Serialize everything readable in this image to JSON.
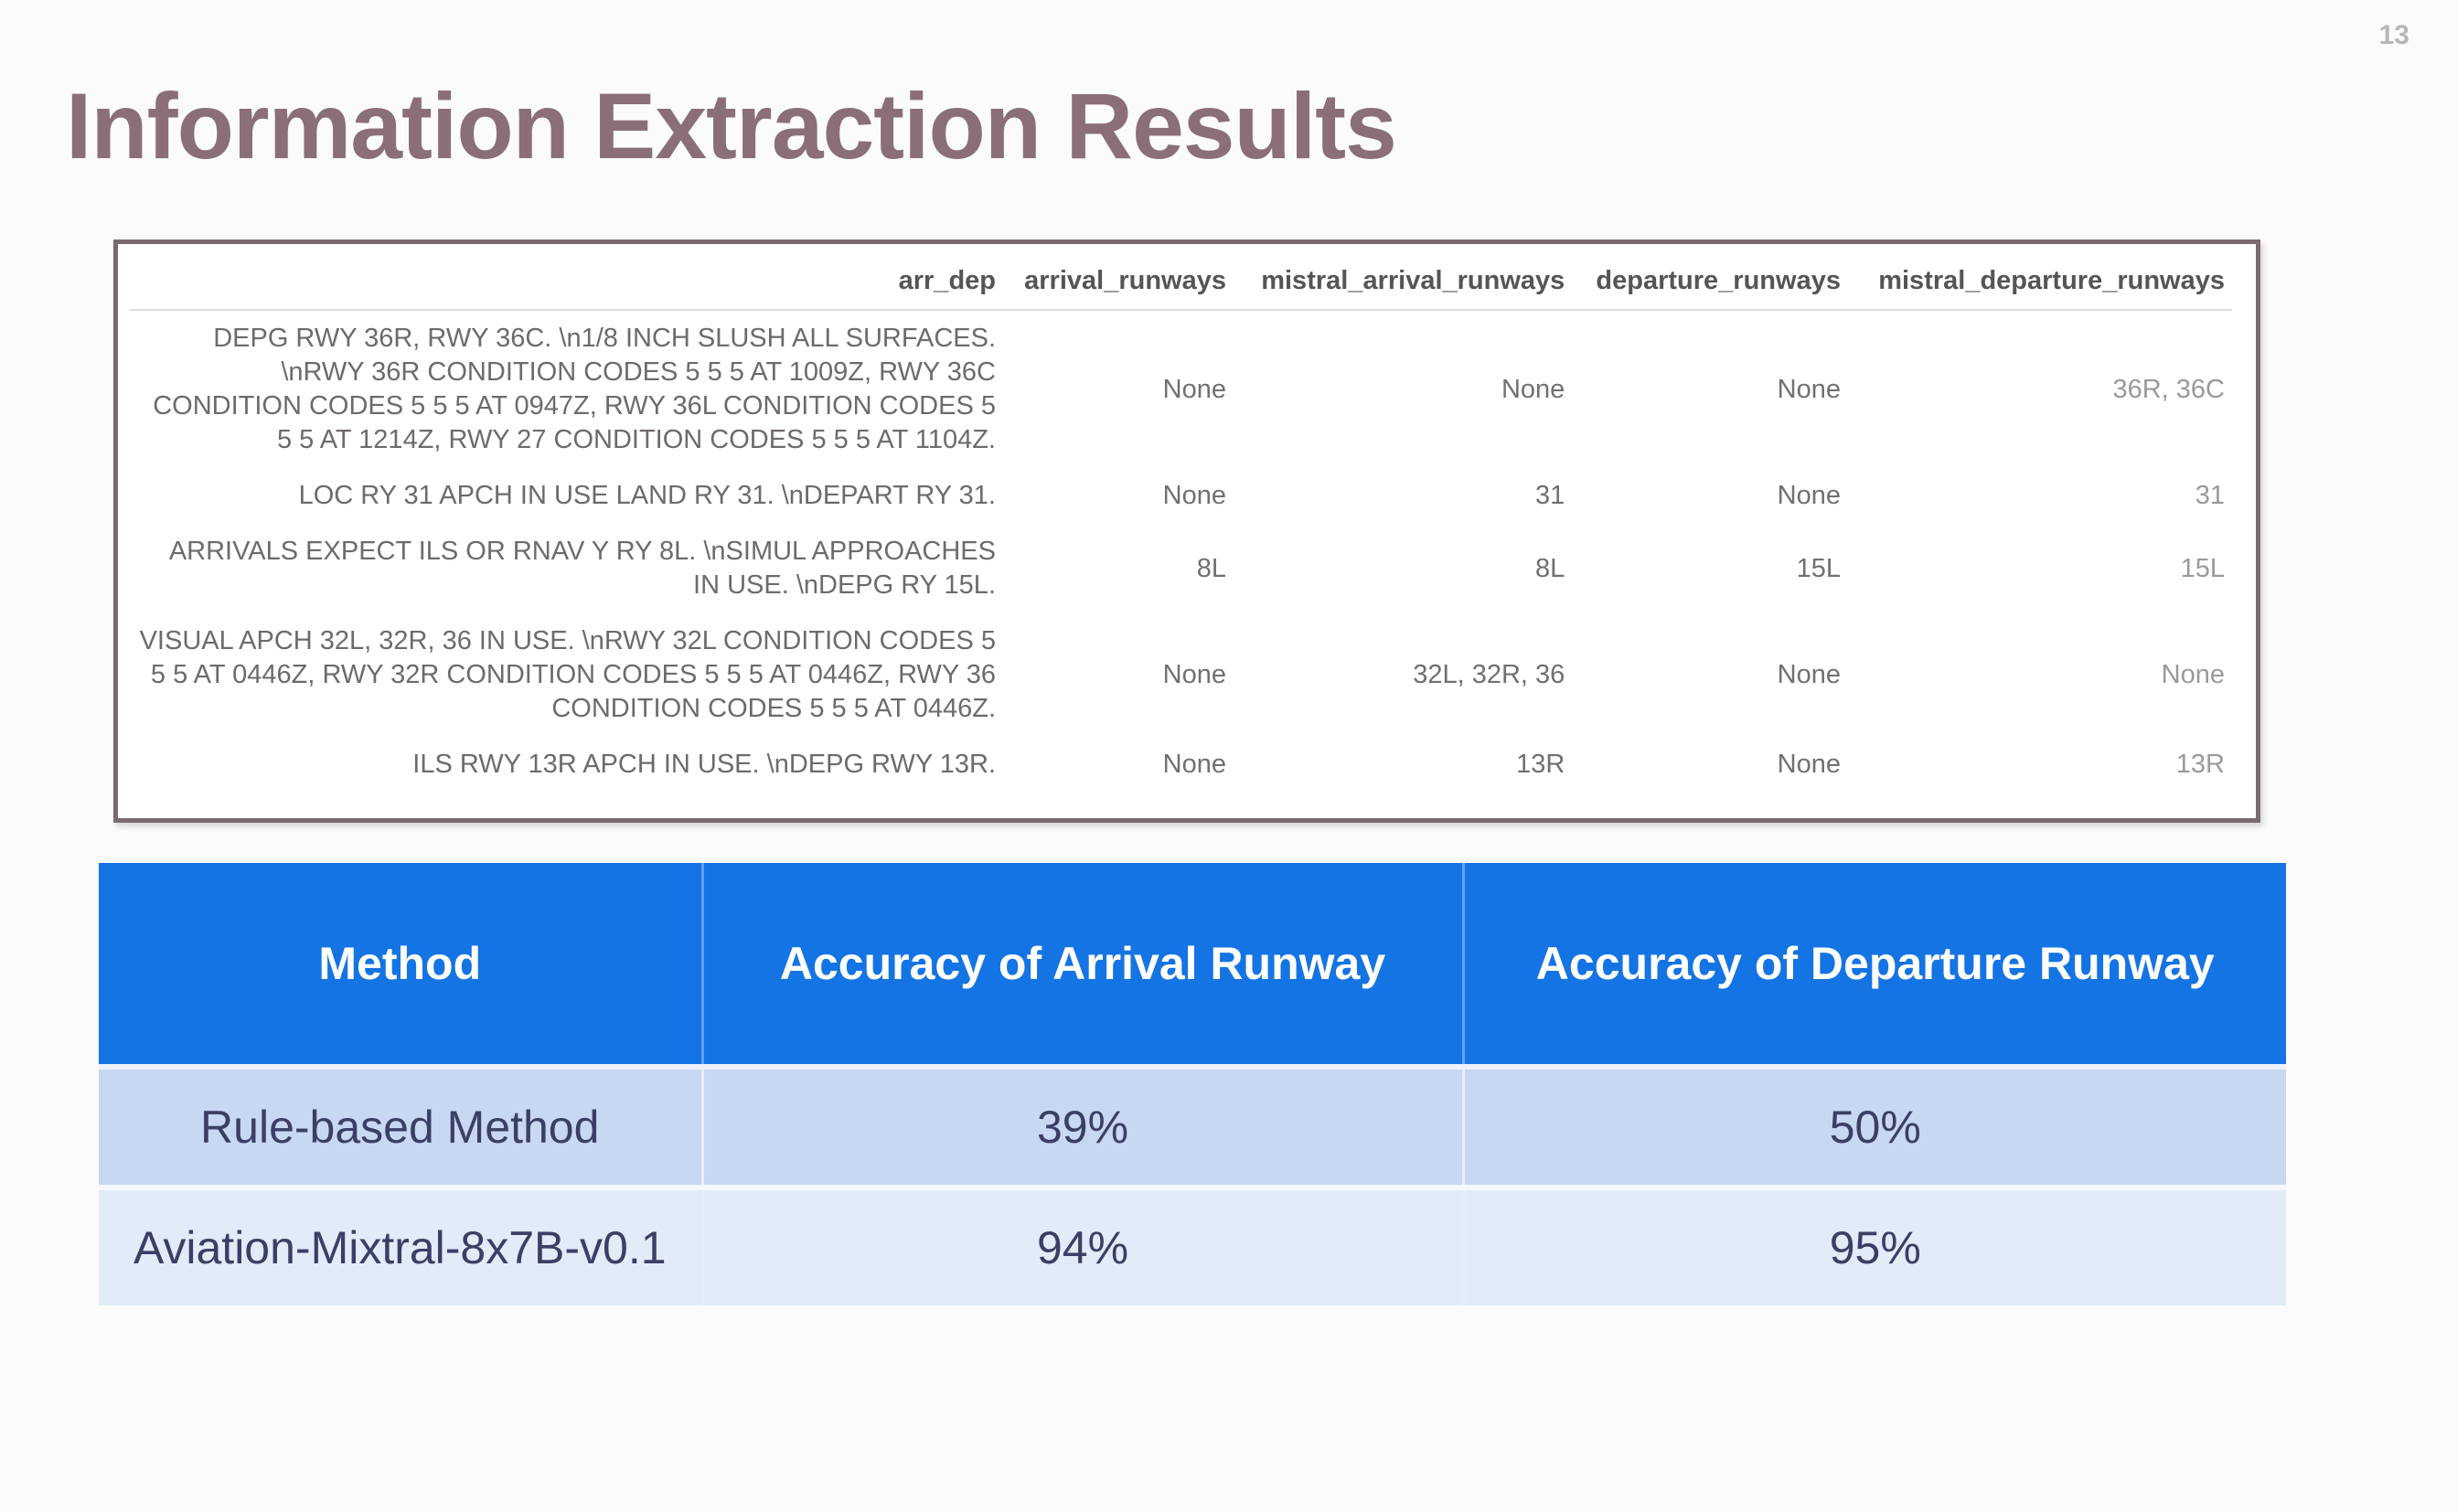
{
  "page_number": "13",
  "title": "Information Extraction Results",
  "extraction_table": {
    "columns": [
      "arr_dep",
      "arrival_runways",
      "mistral_arrival_runways",
      "departure_runways",
      "mistral_departure_runways"
    ],
    "rows": [
      {
        "arr_dep": "DEPG RWY 36R, RWY 36C. \\n1/8 INCH SLUSH ALL SURFACES. \\nRWY 36R CONDITION CODES 5 5 5 AT 1009Z, RWY 36C CONDITION CODES 5 5 5 AT 0947Z, RWY 36L CONDITION CODES 5 5 5 AT 1214Z, RWY 27 CONDITION CODES 5 5 5 AT 1104Z.",
        "arrival_runways": "None",
        "mistral_arrival_runways": "None",
        "departure_runways": "None",
        "mistral_departure_runways": "36R, 36C"
      },
      {
        "arr_dep": "LOC RY 31 APCH IN USE LAND RY 31. \\nDEPART RY 31.",
        "arrival_runways": "None",
        "mistral_arrival_runways": "31",
        "departure_runways": "None",
        "mistral_departure_runways": "31"
      },
      {
        "arr_dep": "ARRIVALS EXPECT ILS OR RNAV Y RY 8L. \\nSIMUL APPROACHES IN USE. \\nDEPG RY 15L.",
        "arrival_runways": "8L",
        "mistral_arrival_runways": "8L",
        "departure_runways": "15L",
        "mistral_departure_runways": "15L"
      },
      {
        "arr_dep": "VISUAL APCH 32L, 32R, 36 IN USE. \\nRWY 32L CONDITION CODES 5 5 5 AT 0446Z, RWY 32R CONDITION CODES 5 5 5 AT 0446Z, RWY 36 CONDITION CODES 5 5 5 AT 0446Z.",
        "arrival_runways": "None",
        "mistral_arrival_runways": "32L, 32R, 36",
        "departure_runways": "None",
        "mistral_departure_runways": "None"
      },
      {
        "arr_dep": "ILS RWY 13R APCH IN USE. \\nDEPG RWY 13R.",
        "arrival_runways": "None",
        "mistral_arrival_runways": "13R",
        "departure_runways": "None",
        "mistral_departure_runways": "13R"
      }
    ]
  },
  "accuracy_table": {
    "headers": [
      "Method",
      "Accuracy of Arrival Runway",
      "Accuracy of Departure Runway"
    ],
    "rows": [
      {
        "method": "Rule-based Method",
        "arrival": "39%",
        "departure": "50%"
      },
      {
        "method": "Aviation-Mixtral-8x7B-v0.1",
        "arrival": "94%",
        "departure": "95%"
      }
    ]
  },
  "colors": {
    "title": "#8b6f78",
    "header_blue": "#1474e3",
    "row1_bg": "#c8d7f2",
    "row2_bg": "#e2ebf8"
  }
}
